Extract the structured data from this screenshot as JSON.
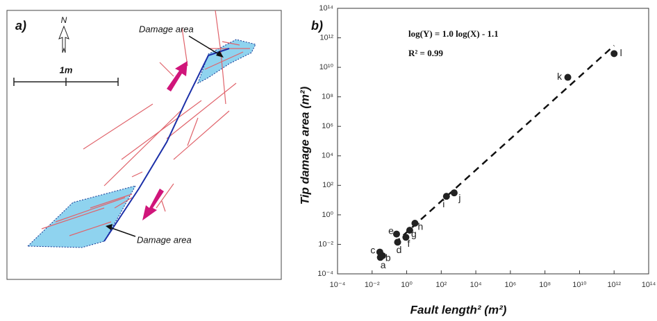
{
  "panel_a": {
    "label": "a)",
    "north": "N",
    "scale": "1m",
    "upper_note": "Damage area",
    "lower_note": "Damage area"
  },
  "chart_data": {
    "type": "scatter",
    "panel_label": "b)",
    "equation": "log(Y) = 1.0 log(X) - 1.1",
    "r_squared": "R² = 0.99",
    "x_label": "Fault length² (m²)",
    "y_label": "Tip damage area (m²)",
    "point_labels": [
      "a",
      "b",
      "c",
      "d",
      "e",
      "f",
      "g",
      "h",
      "i",
      "j",
      "k",
      "l"
    ],
    "x": [
      0.03,
      0.04,
      0.028,
      0.3,
      0.26,
      0.9,
      1.5,
      3,
      200,
      560,
      2100000000,
      1000000000000
    ],
    "values": [
      0.0013,
      0.0017,
      0.003,
      0.014,
      0.05,
      0.03,
      0.09,
      0.27,
      18,
      31,
      2100000000,
      85000000000
    ],
    "color": "#222222",
    "trendline": {
      "x": [
        0.2,
        1000000000000
      ],
      "y": [
        0.012,
        300000000000
      ]
    },
    "log_x": true,
    "log_y": true,
    "xlim": [
      0.0001,
      100000000000000
    ],
    "ylim": [
      0.0001,
      100000000000000
    ],
    "xticks": [
      {
        "value": 0.0001,
        "label": "10⁻⁴"
      },
      {
        "value": 0.01,
        "label": "10⁻²"
      },
      {
        "value": 1,
        "label": "10⁰"
      },
      {
        "value": 100,
        "label": "10²"
      },
      {
        "value": 10000,
        "label": "10⁴"
      },
      {
        "value": 1000000,
        "label": "10⁶"
      },
      {
        "value": 100000000,
        "label": "10⁸"
      },
      {
        "value": 10000000000,
        "label": "10¹⁰"
      },
      {
        "value": 1000000000000,
        "label": "10¹²"
      },
      {
        "value": 100000000000000,
        "label": "10¹⁴"
      }
    ],
    "yticks": [
      {
        "value": 0.0001,
        "label": "10⁻⁴"
      },
      {
        "value": 0.01,
        "label": "10⁻²"
      },
      {
        "value": 1,
        "label": "10⁰"
      },
      {
        "value": 100,
        "label": "10²"
      },
      {
        "value": 10000,
        "label": "10⁴"
      },
      {
        "value": 1000000,
        "label": "10⁶"
      },
      {
        "value": 100000000,
        "label": "10⁸"
      },
      {
        "value": 10000000000,
        "label": "10¹⁰"
      },
      {
        "value": 1000000000000,
        "label": "10¹²"
      },
      {
        "value": 100000000000000,
        "label": "10¹⁴"
      }
    ]
  }
}
